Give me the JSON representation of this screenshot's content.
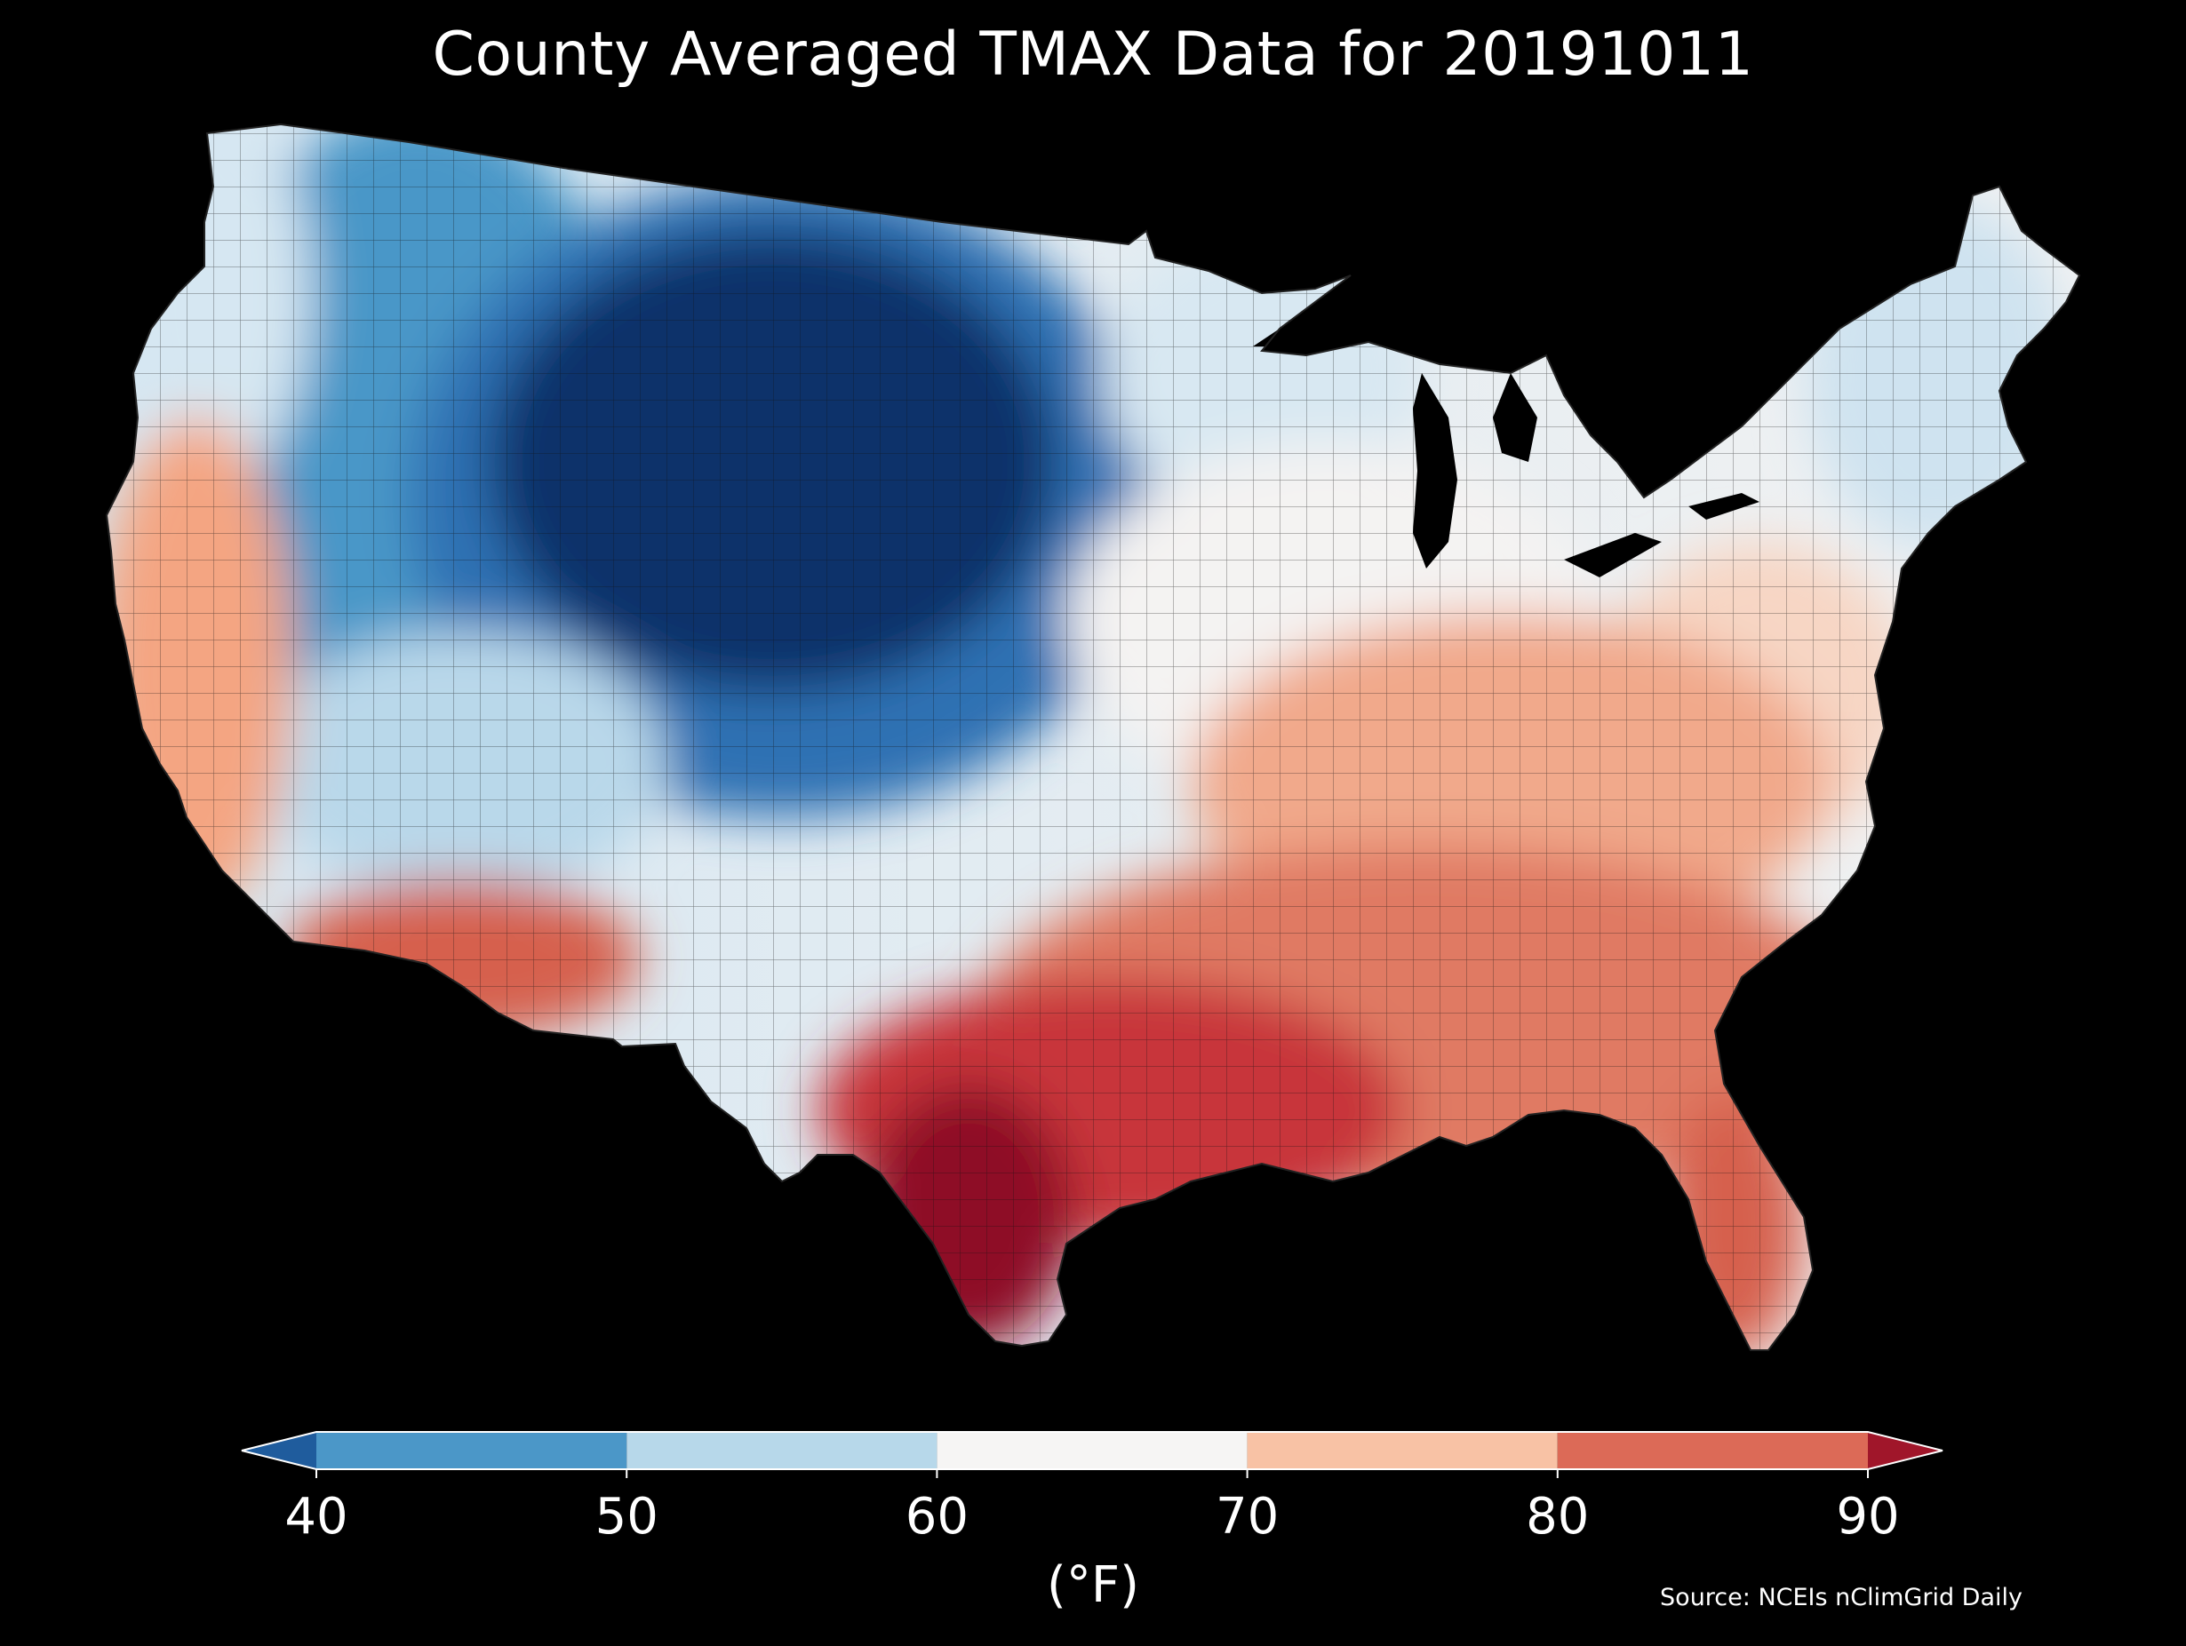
{
  "title": "County Averaged TMAX Data for 20191011",
  "source": "Source: NCEIs nClimGrid Daily",
  "colorbar": {
    "unit_label": "(°F)",
    "ticks": [
      "40",
      "50",
      "60",
      "70",
      "80",
      "90"
    ],
    "bins": [
      {
        "from": null,
        "to": 40,
        "color": "#1f5c9d"
      },
      {
        "from": 40,
        "to": 50,
        "color": "#4b97c8"
      },
      {
        "from": 50,
        "to": 60,
        "color": "#b7d8ea"
      },
      {
        "from": 60,
        "to": 70,
        "color": "#f6f5f4"
      },
      {
        "from": 70,
        "to": 80,
        "color": "#f8c2a5"
      },
      {
        "from": 80,
        "to": 90,
        "color": "#dc6a57"
      },
      {
        "from": 90,
        "to": null,
        "color": "#a0162a"
      }
    ],
    "extend": "both"
  },
  "map": {
    "region": "Contiguous United States",
    "colors": {
      "background": "#000000",
      "lakes": "#000000",
      "county_borders": "#1a1a1a"
    },
    "regions": [
      {
        "name": "pacific-northwest-coast",
        "value_band": "50-60",
        "color": "#d6e7f2"
      },
      {
        "name": "northern-rockies-west",
        "value_band": "40-50",
        "color": "#4a97c8"
      },
      {
        "name": "northern-plains-core",
        "value_band": "<40",
        "color": "#08306b"
      },
      {
        "name": "central-plains-transition",
        "value_band": "40-50",
        "color": "#2f71b3"
      },
      {
        "name": "great-basin",
        "value_band": "50-60",
        "color": "#b9d8ea"
      },
      {
        "name": "california-coast",
        "value_band": "70-80",
        "color": "#f4a582"
      },
      {
        "name": "desert-southwest",
        "value_band": "80-90",
        "color": "#d6604d"
      },
      {
        "name": "upper-midwest",
        "value_band": "50-60",
        "color": "#d8e8f2"
      },
      {
        "name": "midwest-great-lakes",
        "value_band": "60-70",
        "color": "#f4f3f2"
      },
      {
        "name": "ohio-valley-appalachia",
        "value_band": "70-80",
        "color": "#f1a98b"
      },
      {
        "name": "new-england",
        "value_band": "50-60",
        "color": "#cfe3f0"
      },
      {
        "name": "mid-atlantic",
        "value_band": "70-80",
        "color": "#f7d6c4"
      },
      {
        "name": "southeast",
        "value_band": "80-90",
        "color": "#e07a63"
      },
      {
        "name": "gulf-coast",
        "value_band": "80-90",
        "color": "#c8363a"
      },
      {
        "name": "south-texas",
        "value_band": ">90",
        "color": "#8e0b25"
      }
    ]
  }
}
